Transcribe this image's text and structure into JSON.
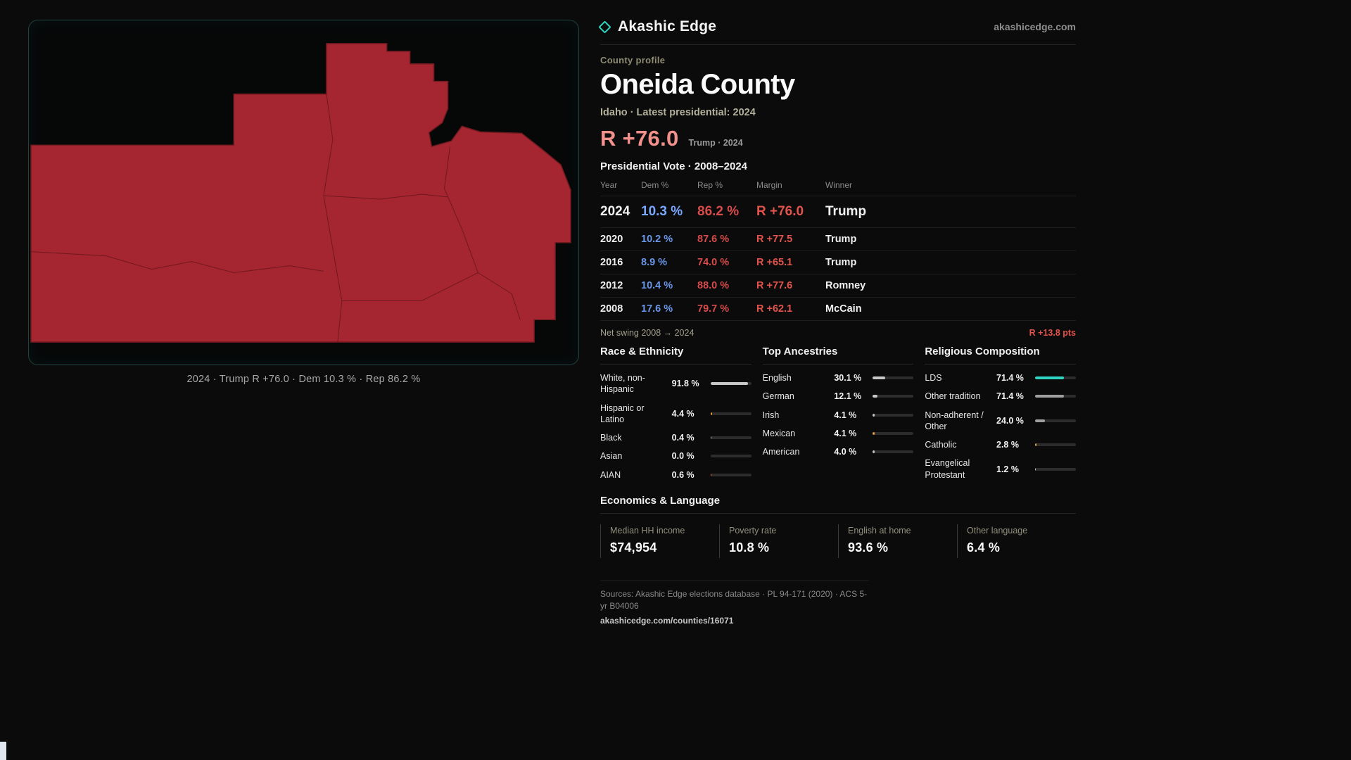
{
  "brand": {
    "name": "Akashic Edge",
    "domain": "akashicedge.com"
  },
  "map": {
    "caption": "2024 · Trump R +76.0 · Dem 10.3 % · Rep 86.2 %",
    "fill_color": "#a52530",
    "stroke_color": "#711a20"
  },
  "profile": {
    "eyebrow": "County profile",
    "title": "Oneida County",
    "subtitle": "Idaho · Latest presidential: 2024",
    "headline_margin": "R +76.0",
    "headline_note": "Trump · 2024"
  },
  "vote_table": {
    "title": "Presidential Vote · 2008–2024",
    "columns": [
      "Year",
      "Dem %",
      "Rep %",
      "Margin",
      "Winner"
    ],
    "rows": [
      {
        "year": "2024",
        "dem": "10.3 %",
        "rep": "86.2 %",
        "margin": "R +76.0",
        "winner": "Trump"
      },
      {
        "year": "2020",
        "dem": "10.2 %",
        "rep": "87.6 %",
        "margin": "R +77.5",
        "winner": "Trump"
      },
      {
        "year": "2016",
        "dem": "8.9 %",
        "rep": "74.0 %",
        "margin": "R +65.1",
        "winner": "Trump"
      },
      {
        "year": "2012",
        "dem": "10.4 %",
        "rep": "88.0 %",
        "margin": "R +77.6",
        "winner": "Romney"
      },
      {
        "year": "2008",
        "dem": "17.6 %",
        "rep": "79.7 %",
        "margin": "R +62.1",
        "winner": "McCain"
      }
    ],
    "net_swing_label": "Net swing 2008 → 2024",
    "net_swing_value": "R +13.8 pts"
  },
  "demographics": {
    "race": {
      "title": "Race & Ethnicity",
      "rows": [
        {
          "label": "White, non-Hispanic",
          "value": "91.8 %",
          "pct": 91.8,
          "color": "#c7c7c7"
        },
        {
          "label": "Hispanic or Latino",
          "value": "4.4 %",
          "pct": 4.4,
          "color": "#e09a3e"
        },
        {
          "label": "Black",
          "value": "0.4 %",
          "pct": 0.4,
          "color": "#c7c7c7"
        },
        {
          "label": "Asian",
          "value": "0.0 %",
          "pct": 0,
          "color": "#c7c7c7"
        },
        {
          "label": "AIAN",
          "value": "0.6 %",
          "pct": 0.6,
          "color": "#de7a3c"
        }
      ]
    },
    "ancestries": {
      "title": "Top Ancestries",
      "rows": [
        {
          "label": "English",
          "value": "30.1 %",
          "pct": 30.1,
          "color": "#c7c7c7"
        },
        {
          "label": "German",
          "value": "12.1 %",
          "pct": 12.1,
          "color": "#c7c7c7"
        },
        {
          "label": "Irish",
          "value": "4.1 %",
          "pct": 4.1,
          "color": "#c7c7c7"
        },
        {
          "label": "Mexican",
          "value": "4.1 %",
          "pct": 4.1,
          "color": "#e09a3e"
        },
        {
          "label": "American",
          "value": "4.0 %",
          "pct": 4.0,
          "color": "#c7c7c7"
        }
      ]
    },
    "religion": {
      "title": "Religious Composition",
      "rows": [
        {
          "label": "LDS",
          "value": "71.4 %",
          "pct": 71.4,
          "color": "#2fd5c0"
        },
        {
          "label": "Other tradition",
          "value": "71.4 %",
          "pct": 71.4,
          "color": "#9f9f9f"
        },
        {
          "label": "Non-adherent / Other",
          "value": "24.0 %",
          "pct": 24.0,
          "color": "#9f9f9f"
        },
        {
          "label": "Catholic",
          "value": "2.8 %",
          "pct": 2.8,
          "color": "#e0b43e"
        },
        {
          "label": "Evangelical Protestant",
          "value": "1.2 %",
          "pct": 1.2,
          "color": "#c7c7c7"
        }
      ]
    }
  },
  "economics": {
    "title": "Economics & Language",
    "stats": [
      {
        "label": "Median HH income",
        "value": "$74,954"
      },
      {
        "label": "Poverty rate",
        "value": "10.8 %"
      },
      {
        "label": "English at home",
        "value": "93.6 %"
      },
      {
        "label": "Other language",
        "value": "6.4 %"
      }
    ]
  },
  "footer": {
    "sources": "Sources: Akashic Edge elections database · PL 94-171 (2020) · ACS 5-yr B04006",
    "permalink": "akashicedge.com/counties/16071"
  },
  "colors": {
    "accent_teal": "#2fd5c0",
    "dem_blue": "#6a96e8",
    "rep_red": "#d84b4b",
    "margin_red": "#e2544b",
    "headline_red": "#f2918c",
    "map_fill": "#a52530"
  }
}
